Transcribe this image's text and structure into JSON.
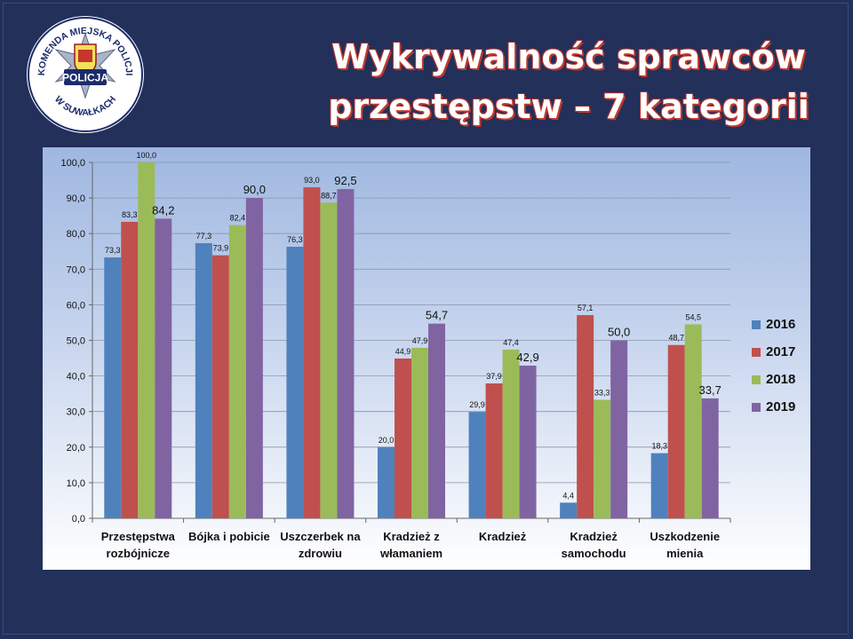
{
  "title": {
    "line1": "Wykrywalność sprawców",
    "line2": "przestępstw – 7 kategorii"
  },
  "logo": {
    "name": "police-badge-logo",
    "text_top": "KOMENDA MIEJSKA POLICJI",
    "text_center": "POLICJA",
    "text_bottom": "W SUWAŁKACH"
  },
  "colors": {
    "background": "#22305a",
    "series": [
      "#4f81bd",
      "#c0504d",
      "#9bbb59",
      "#8064a2"
    ]
  },
  "chart_data": {
    "type": "bar",
    "categories": [
      [
        "Przestępstwa",
        "rozbójnicze"
      ],
      [
        "Bójka i pobicie"
      ],
      [
        "Uszczerbek na",
        "zdrowiu"
      ],
      [
        "Kradzież z",
        "włamaniem"
      ],
      [
        "Kradzież"
      ],
      [
        "Kradzież",
        "samochodu"
      ],
      [
        "Uszkodzenie",
        "mienia"
      ]
    ],
    "series": [
      {
        "name": "2016",
        "values": [
          73.3,
          77.3,
          76.3,
          20.0,
          29.9,
          4.4,
          18.3
        ],
        "labels": [
          "73,3",
          "77,3",
          "76,3",
          "20,0",
          "29,9",
          "4,4",
          "18,3"
        ]
      },
      {
        "name": "2017",
        "values": [
          83.3,
          73.9,
          93.0,
          44.9,
          37.9,
          57.1,
          48.7
        ],
        "labels": [
          "83,3",
          "73,9",
          "93,0",
          "44,9",
          "37,9",
          "57,1",
          "48,7"
        ]
      },
      {
        "name": "2018",
        "values": [
          100.0,
          82.4,
          88.7,
          47.9,
          47.4,
          33.3,
          54.5
        ],
        "labels": [
          "100,0",
          "82,4",
          "88,7",
          "47,9",
          "47,4",
          "33,3",
          "54,5"
        ]
      },
      {
        "name": "2019",
        "values": [
          84.2,
          90.0,
          92.5,
          54.7,
          42.9,
          50.0,
          33.7
        ],
        "labels": [
          "84,2",
          "90,0",
          "92,5",
          "54,7",
          "42,9",
          "50,0",
          "33,7"
        ]
      }
    ],
    "y_ticks": [
      "0,0",
      "10,0",
      "20,0",
      "30,0",
      "40,0",
      "50,0",
      "60,0",
      "70,0",
      "80,0",
      "90,0",
      "100,0"
    ],
    "ylim": [
      0,
      100
    ],
    "grid": true,
    "legend_position": "right",
    "title": "",
    "xlabel": "",
    "ylabel": ""
  }
}
